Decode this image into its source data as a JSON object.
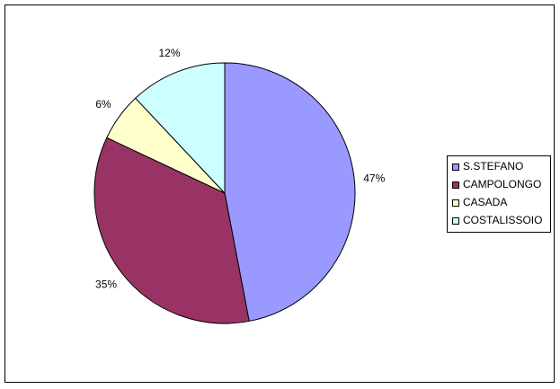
{
  "chart_data": {
    "type": "pie",
    "categories": [
      "S.STEFANO",
      "CAMPOLONGO",
      "CASADA",
      "COSTALISSOIO"
    ],
    "values": [
      47,
      35,
      6,
      12
    ],
    "value_labels": [
      "47%",
      "35%",
      "6%",
      "12%"
    ],
    "colors": [
      "#9999ff",
      "#993366",
      "#ffffcc",
      "#ccffff"
    ],
    "legend": "right"
  }
}
